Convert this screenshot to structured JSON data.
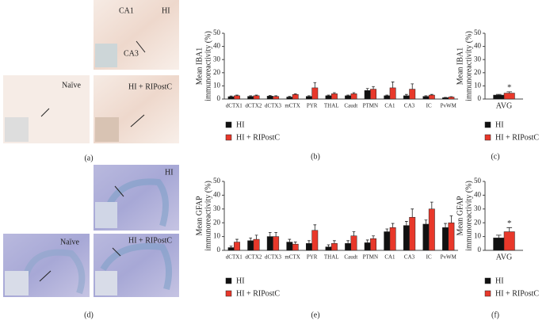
{
  "figure": {
    "panel_a": {
      "label": "(a)",
      "hi": [
        "CA1",
        "HI",
        "CA3"
      ],
      "ripostc": "HI + RIPostC",
      "naive": "Naïve"
    },
    "panel_d": {
      "label": "(d)",
      "hi": "HI",
      "ripostc": "HI + RIPostC",
      "naive": "Naïve"
    }
  },
  "chart_data": [
    {
      "type": "bar",
      "panel_label": "(b)",
      "ylabel": [
        "Mean IBA1",
        "immunoreactivity (%)"
      ],
      "categories": [
        "dCTX1",
        "dCTX2",
        "dCTX3",
        "mCTX",
        "PYR",
        "THAL",
        "Caudt",
        "PTMN",
        "CA1",
        "CA3",
        "IC",
        "PvWM"
      ],
      "series": [
        {
          "name": "HI",
          "color": "#111111",
          "values": [
            1.8,
            2,
            2.2,
            1.5,
            2,
            2.5,
            2.5,
            6.5,
            2.5,
            2.5,
            2,
            1
          ],
          "errors": [
            0.5,
            0.5,
            0.5,
            0.5,
            0.5,
            0.5,
            0.5,
            1.5,
            0.5,
            1,
            0.5,
            0.3
          ]
        },
        {
          "name": "HI + RIPostC",
          "color": "#e8382a",
          "values": [
            2.5,
            2.5,
            2,
            3.5,
            8.5,
            4,
            4,
            7.5,
            8.5,
            7.5,
            3,
            1.5
          ],
          "errors": [
            0.5,
            0.5,
            0.5,
            0.5,
            4,
            0.8,
            0.8,
            2,
            4.5,
            4,
            0.5,
            0.3
          ]
        }
      ],
      "ylim": [
        0,
        50
      ],
      "yticks": [
        0,
        10,
        20,
        30,
        40,
        50
      ]
    },
    {
      "type": "bar",
      "panel_label": "(c)",
      "ylabel": [
        "Mean IBA1",
        "immunoreactivity (%)"
      ],
      "categories": [
        "AVG"
      ],
      "annotation": "*",
      "series": [
        {
          "name": "HI",
          "color": "#111111",
          "values": [
            3
          ],
          "errors": [
            0.5
          ]
        },
        {
          "name": "HI + RIPostC",
          "color": "#e8382a",
          "values": [
            4.5
          ],
          "errors": [
            1
          ]
        }
      ],
      "ylim": [
        0,
        50
      ],
      "yticks": [
        0,
        10,
        20,
        30,
        40,
        50
      ]
    },
    {
      "type": "bar",
      "panel_label": "(e)",
      "ylabel": [
        "Mean GFAP",
        "immunoreactivity (%)"
      ],
      "categories": [
        "dCTX1",
        "dCTX2",
        "dCTX3",
        "mCTX",
        "PYR",
        "THAL",
        "Caudt",
        "PTMN",
        "CA1",
        "CA3",
        "IC",
        "PvWM"
      ],
      "series": [
        {
          "name": "HI",
          "color": "#111111",
          "values": [
            2,
            7,
            10,
            6,
            5,
            2.5,
            5,
            5.5,
            13.5,
            18,
            19,
            16.5
          ],
          "errors": [
            1,
            2,
            3,
            2,
            2,
            1.5,
            2,
            2,
            2,
            3,
            3,
            3
          ]
        },
        {
          "name": "HI + RIPostC",
          "color": "#e8382a",
          "values": [
            6,
            8,
            10,
            4.5,
            14.5,
            5,
            10.5,
            8.5,
            16.5,
            24,
            30,
            20
          ],
          "errors": [
            2,
            3,
            3,
            1.5,
            4,
            2,
            3,
            2,
            3,
            6,
            5,
            5
          ]
        }
      ],
      "ylim": [
        0,
        50
      ],
      "yticks": [
        0,
        10,
        20,
        30,
        40,
        50
      ]
    },
    {
      "type": "bar",
      "panel_label": "(f)",
      "ylabel": [
        "Mean GFAP",
        "immunoreactivity (%)"
      ],
      "categories": [
        "AVG"
      ],
      "annotation": "*",
      "series": [
        {
          "name": "HI",
          "color": "#111111",
          "values": [
            9
          ],
          "errors": [
            2
          ]
        },
        {
          "name": "HI + RIPostC",
          "color": "#e8382a",
          "values": [
            13.5
          ],
          "errors": [
            3
          ]
        }
      ],
      "ylim": [
        0,
        50
      ],
      "yticks": [
        0,
        10,
        20,
        30,
        40,
        50
      ]
    }
  ]
}
